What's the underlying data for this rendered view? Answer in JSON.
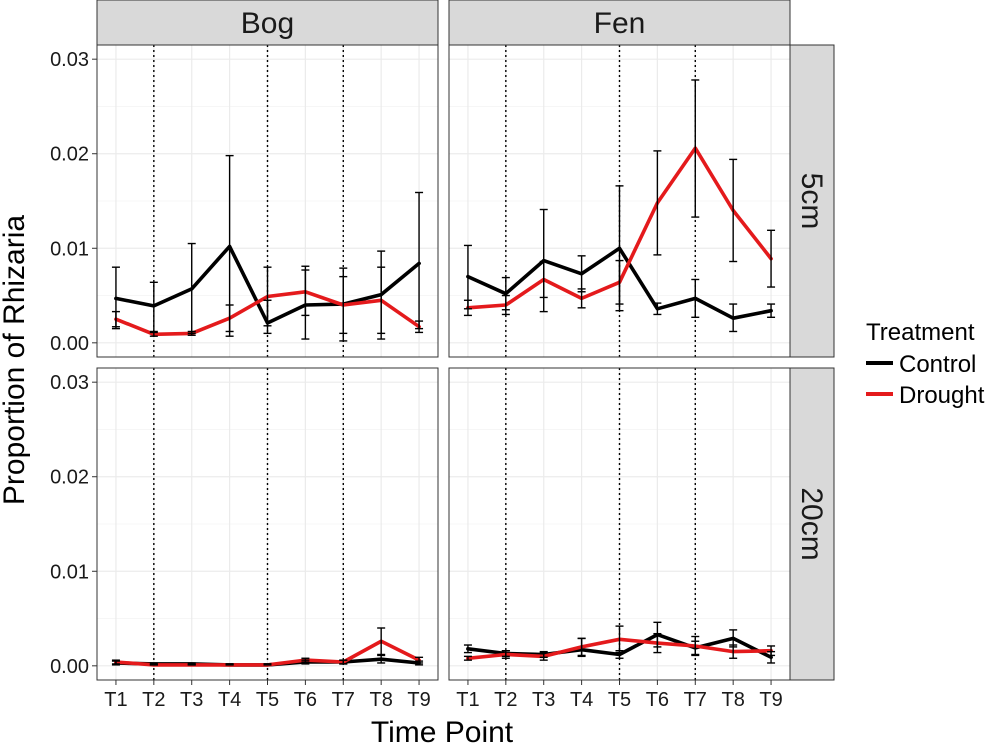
{
  "chart_data": {
    "type": "line",
    "xlabel": "Time Point",
    "ylabel": "Proportion of Rhizaria",
    "categories": [
      "T1",
      "T2",
      "T3",
      "T4",
      "T5",
      "T6",
      "T7",
      "T8",
      "T9"
    ],
    "ylim": [
      -0.0015,
      0.0315
    ],
    "yticks": [
      0.0,
      0.01,
      0.02,
      0.03
    ],
    "ytick_labels": [
      "0.00",
      "0.01",
      "0.02",
      "0.03"
    ],
    "grid": true,
    "dotted_vlines_at": [
      "T2",
      "T5",
      "T7"
    ],
    "column_strips": [
      "Bog",
      "Fen"
    ],
    "row_strips": [
      "5cm",
      "20cm"
    ],
    "legend": {
      "title": "Treatment",
      "placement": "right",
      "entries": [
        {
          "label": "Control",
          "color": "#000000"
        },
        {
          "label": "Drought",
          "color": "#e41a1c"
        }
      ]
    },
    "panels": [
      {
        "column": "Bog",
        "row": "5cm",
        "series": [
          {
            "name": "Control",
            "values": [
              0.0047,
              0.0039,
              0.0057,
              0.0102,
              0.0021,
              0.004,
              0.0041,
              0.0051,
              0.0084
            ],
            "err_low": [
              0.0015,
              0.0012,
              0.001,
              0.0007,
              0.001,
              0.0004,
              0.0002,
              0.0004,
              0.0015
            ],
            "err_high": [
              0.008,
              0.0064,
              0.0105,
              0.0198,
              0.0045,
              0.0077,
              0.0079,
              0.0097,
              0.0159
            ]
          },
          {
            "name": "Drought",
            "values": [
              0.0025,
              0.0009,
              0.001,
              0.0026,
              0.0049,
              0.0054,
              0.004,
              0.0045,
              0.0017
            ],
            "err_low": [
              0.0017,
              0.0007,
              0.0008,
              0.0012,
              0.0018,
              0.0029,
              0.001,
              0.001,
              0.0011
            ],
            "err_high": [
              0.0033,
              0.0011,
              0.0012,
              0.004,
              0.008,
              0.0081,
              0.007,
              0.008,
              0.0023
            ]
          }
        ]
      },
      {
        "column": "Fen",
        "row": "5cm",
        "series": [
          {
            "name": "Control",
            "values": [
              0.007,
              0.0052,
              0.0087,
              0.0073,
              0.01,
              0.0036,
              0.0047,
              0.0026,
              0.0034
            ],
            "err_low": [
              0.0036,
              0.0035,
              0.0033,
              0.0054,
              0.0034,
              0.003,
              0.0027,
              0.0012,
              0.0027
            ],
            "err_high": [
              0.0103,
              0.0069,
              0.0141,
              0.0092,
              0.0166,
              0.0042,
              0.0067,
              0.0041,
              0.0041
            ]
          },
          {
            "name": "Drought",
            "values": [
              0.0037,
              0.004,
              0.0067,
              0.0047,
              0.0064,
              0.0148,
              0.0206,
              0.014,
              0.0089
            ],
            "err_low": [
              0.0029,
              0.003,
              0.0048,
              0.0037,
              0.0041,
              0.0093,
              0.0133,
              0.0086,
              0.0059
            ],
            "err_high": [
              0.0045,
              0.005,
              0.0086,
              0.0057,
              0.0087,
              0.0203,
              0.0278,
              0.0194,
              0.0119
            ]
          }
        ]
      },
      {
        "column": "Bog",
        "row": "20cm",
        "series": [
          {
            "name": "Control",
            "values": [
              0.0003,
              0.0002,
              0.0002,
              0.0001,
              0.0001,
              0.0004,
              0.0004,
              0.0007,
              0.0003
            ],
            "err_low": [
              0.0001,
              0.0001,
              0.0001,
              0.0001,
              0.0001,
              0.0002,
              0.0002,
              0.0003,
              0.0001
            ],
            "err_high": [
              0.0005,
              0.0003,
              0.0003,
              0.0002,
              0.0002,
              0.0006,
              0.0006,
              0.0011,
              0.0005
            ]
          },
          {
            "name": "Drought",
            "values": [
              0.0004,
              0.0001,
              0.0001,
              0.0001,
              0.0001,
              0.0006,
              0.0004,
              0.0026,
              0.0006
            ],
            "err_low": [
              0.0002,
              0.0001,
              0.0001,
              0.0001,
              0.0001,
              0.0004,
              0.0002,
              0.0012,
              0.0003
            ],
            "err_high": [
              0.0006,
              0.0002,
              0.0002,
              0.0002,
              0.0002,
              0.0008,
              0.0006,
              0.004,
              0.0009
            ]
          }
        ]
      },
      {
        "column": "Fen",
        "row": "20cm",
        "series": [
          {
            "name": "Control",
            "values": [
              0.0018,
              0.0013,
              0.0012,
              0.0017,
              0.0012,
              0.0033,
              0.0019,
              0.0029,
              0.0009
            ],
            "err_low": [
              0.0014,
              0.001,
              0.0009,
              0.001,
              0.0008,
              0.002,
              0.0012,
              0.002,
              0.0003
            ],
            "err_high": [
              0.0022,
              0.0016,
              0.0015,
              0.0029,
              0.0016,
              0.0046,
              0.0026,
              0.0038,
              0.0015
            ]
          },
          {
            "name": "Drought",
            "values": [
              0.0008,
              0.0012,
              0.001,
              0.002,
              0.0028,
              0.0024,
              0.0021,
              0.0015,
              0.0016
            ],
            "err_low": [
              0.0006,
              0.0008,
              0.0006,
              0.0011,
              0.0014,
              0.0014,
              0.0011,
              0.0008,
              0.0011
            ],
            "err_high": [
              0.001,
              0.0016,
              0.0014,
              0.0029,
              0.0042,
              0.0034,
              0.0031,
              0.0022,
              0.0021
            ]
          }
        ]
      }
    ]
  }
}
